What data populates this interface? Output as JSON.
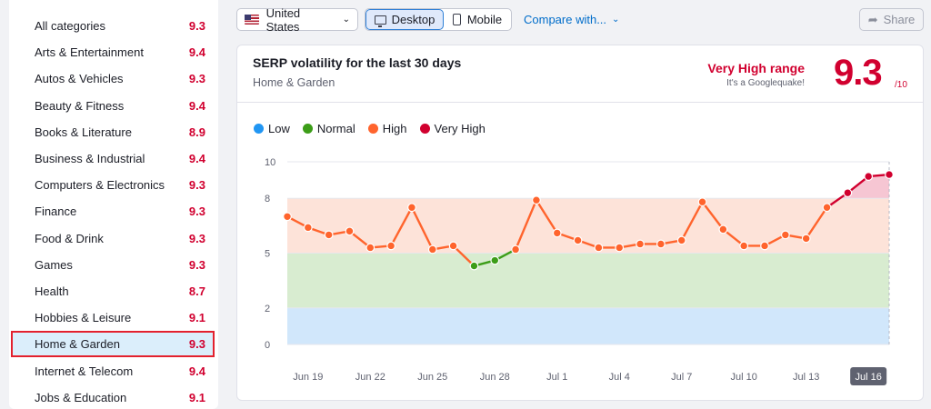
{
  "sidebar": {
    "categories": [
      {
        "name": "All categories",
        "score": "9.3"
      },
      {
        "name": "Arts & Entertainment",
        "score": "9.4"
      },
      {
        "name": "Autos & Vehicles",
        "score": "9.3"
      },
      {
        "name": "Beauty & Fitness",
        "score": "9.4"
      },
      {
        "name": "Books & Literature",
        "score": "8.9"
      },
      {
        "name": "Business & Industrial",
        "score": "9.4"
      },
      {
        "name": "Computers & Electronics",
        "score": "9.3"
      },
      {
        "name": "Finance",
        "score": "9.3"
      },
      {
        "name": "Food & Drink",
        "score": "9.3"
      },
      {
        "name": "Games",
        "score": "9.3"
      },
      {
        "name": "Health",
        "score": "8.7"
      },
      {
        "name": "Hobbies & Leisure",
        "score": "9.1"
      },
      {
        "name": "Home & Garden",
        "score": "9.3",
        "selected": true
      },
      {
        "name": "Internet & Telecom",
        "score": "9.4"
      },
      {
        "name": "Jobs & Education",
        "score": "9.1"
      }
    ]
  },
  "toolbar": {
    "country": "United States",
    "desktop_label": "Desktop",
    "mobile_label": "Mobile",
    "compare_label": "Compare with...",
    "share_label": "Share"
  },
  "card": {
    "title": "SERP volatility for the last 30 days",
    "subtitle": "Home & Garden",
    "range_title": "Very High range",
    "range_sub": "It's a Googlequake!",
    "score": "9.3",
    "score_out_of": "/10"
  },
  "colors": {
    "low": "#2196f3",
    "normal": "#3c9d18",
    "high": "#ff642d",
    "very_high": "#d1002f",
    "accent_blue": "#006dca"
  },
  "chart_data": {
    "type": "line",
    "legend": [
      {
        "name": "Low",
        "color": "#2196f3"
      },
      {
        "name": "Normal",
        "color": "#3c9d18"
      },
      {
        "name": "High",
        "color": "#ff642d"
      },
      {
        "name": "Very High",
        "color": "#d1002f"
      }
    ],
    "y_ticks": [
      "0",
      "2",
      "5",
      "8",
      "10"
    ],
    "bands": [
      {
        "name": "Low",
        "from": 0,
        "to": 2
      },
      {
        "name": "Normal",
        "from": 2,
        "to": 5
      },
      {
        "name": "High",
        "from": 5,
        "to": 8
      },
      {
        "name": "Very High",
        "from": 8,
        "to": 10
      }
    ],
    "x_ticks": [
      "Jun 19",
      "Jun 22",
      "Jun 25",
      "Jun 28",
      "Jul 1",
      "Jul 4",
      "Jul 7",
      "Jul 10",
      "Jul 13",
      "Jul 16"
    ],
    "x_tick_index": [
      1,
      4,
      7,
      10,
      13,
      16,
      19,
      22,
      25,
      28
    ],
    "values": [
      7.0,
      6.4,
      6.0,
      6.2,
      5.3,
      5.4,
      7.5,
      5.2,
      5.4,
      4.3,
      4.6,
      5.2,
      7.9,
      6.1,
      5.7,
      5.3,
      5.3,
      5.5,
      5.5,
      5.7,
      7.8,
      6.3,
      5.4,
      5.4,
      6.0,
      5.8,
      7.5,
      8.3,
      9.2,
      9.3
    ],
    "ylim": [
      0,
      10
    ],
    "selected_label": "Jul 16"
  }
}
